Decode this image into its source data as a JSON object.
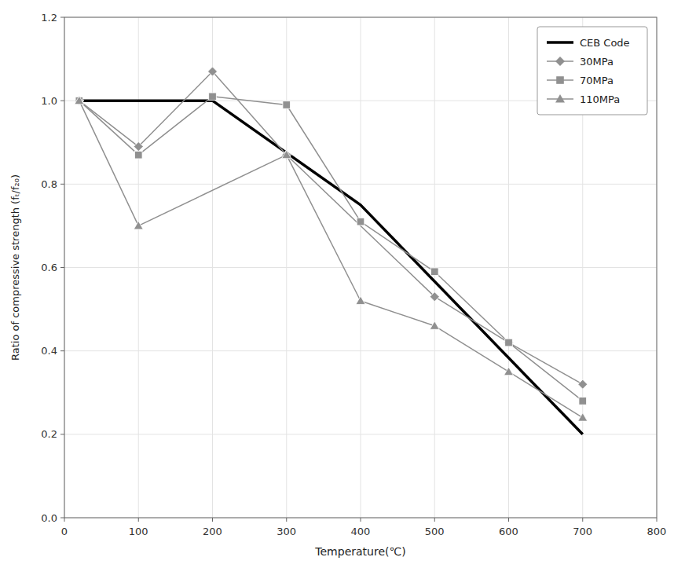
{
  "chart_data": {
    "type": "line",
    "x_label": "Temperature(℃)",
    "y_label": "Ratio of compressive strength (fₜ/f₂₀)",
    "xlim": [
      0,
      800
    ],
    "ylim": [
      0.0,
      1.2
    ],
    "xticks": [
      0,
      100,
      200,
      300,
      400,
      500,
      600,
      700,
      800
    ],
    "yticks": [
      {
        "value": 0.0,
        "label": "0.0"
      },
      0.2,
      0.4,
      0.6,
      0.8,
      {
        "value": 1.0,
        "label": "1.0"
      },
      1.2
    ],
    "grid": true,
    "legend": "upper right",
    "series": [
      {
        "name": "CEB Code",
        "color": "#000000",
        "x": [
          20,
          200,
          400,
          700
        ],
        "values": [
          1.0,
          1.0,
          0.75,
          0.2
        ]
      },
      {
        "name": "30MPa",
        "color": "#909090",
        "marker": "diamond",
        "x": [
          20,
          100,
          200,
          300,
          500,
          600,
          700
        ],
        "values": [
          1.0,
          0.89,
          1.07,
          0.87,
          0.53,
          0.42,
          0.32
        ]
      },
      {
        "name": "70MPa",
        "color": "#909090",
        "marker": "square",
        "x": [
          20,
          100,
          200,
          300,
          400,
          500,
          600,
          700
        ],
        "values": [
          1.0,
          0.87,
          1.01,
          0.99,
          0.71,
          0.59,
          0.42,
          0.28
        ]
      },
      {
        "name": "110MPa",
        "color": "#909090",
        "marker": "triangle",
        "x": [
          20,
          100,
          300,
          400,
          500,
          600,
          700
        ],
        "values": [
          1.0,
          0.7,
          0.87,
          0.52,
          0.46,
          0.35,
          0.24
        ]
      }
    ]
  }
}
